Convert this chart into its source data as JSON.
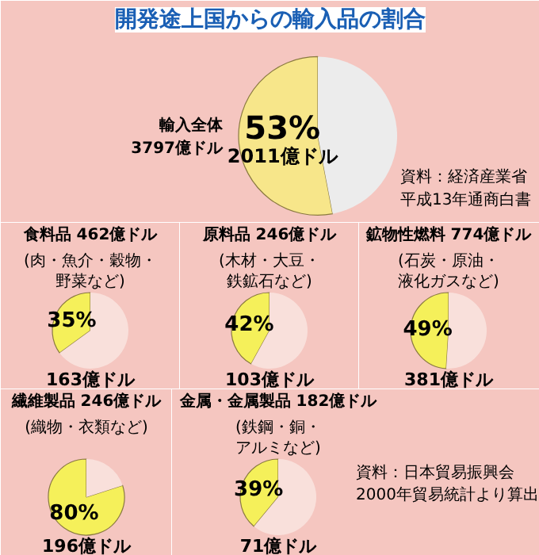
{
  "chart_data": [
    {
      "type": "pie",
      "title": "開発途上国からの輸入品の割合",
      "categories": [
        null,
        null
      ],
      "values": [
        53,
        47
      ],
      "colors": [
        "#f7e68a",
        "#ececec"
      ],
      "value_labels": [
        "53%",
        null
      ],
      "annotations": [
        "2011億ドル",
        "輸入全体",
        "3797億ドル",
        "資料：経済産業省",
        "平成13年通商白書"
      ]
    },
    {
      "type": "pie",
      "title": "食料品 462億ドル",
      "subtitle": "(肉・魚介・穀物・野菜など)",
      "categories": [
        null,
        null
      ],
      "values": [
        35,
        65
      ],
      "colors": [
        "#f5f05a",
        "#f9e0db"
      ],
      "value_labels": [
        "35%",
        null
      ],
      "annotations": [
        "163億ドル"
      ]
    },
    {
      "type": "pie",
      "title": "原料品 246億ドル",
      "subtitle": "(木材・大豆・鉄鉱石など)",
      "categories": [
        null,
        null
      ],
      "values": [
        42,
        58
      ],
      "colors": [
        "#f5f05a",
        "#f9e0db"
      ],
      "value_labels": [
        "42%",
        null
      ],
      "annotations": [
        "103億ドル"
      ]
    },
    {
      "type": "pie",
      "title": "鉱物性燃料 774億ドル",
      "subtitle": "(石炭・原油・液化ガスなど)",
      "categories": [
        null,
        null
      ],
      "values": [
        49,
        51
      ],
      "colors": [
        "#f5f05a",
        "#f9e0db"
      ],
      "value_labels": [
        "49%",
        null
      ],
      "annotations": [
        "381億ドル"
      ]
    },
    {
      "type": "pie",
      "title": "繊維製品 246億ドル",
      "subtitle": "(織物・衣類など)",
      "categories": [
        null,
        null
      ],
      "values": [
        80,
        20
      ],
      "colors": [
        "#f5f05a",
        "#f9e0db"
      ],
      "value_labels": [
        "80%",
        null
      ],
      "annotations": [
        "196億ドル"
      ]
    },
    {
      "type": "pie",
      "title": "金属・金属製品 182億ドル",
      "subtitle": "(鉄鋼・銅・アルミなど)",
      "categories": [
        null,
        null
      ],
      "values": [
        39,
        61
      ],
      "colors": [
        "#f5f05a",
        "#f9e0db"
      ],
      "value_labels": [
        "39%",
        null
      ],
      "annotations": [
        "71億ドル",
        "資料：日本貿易振興会",
        "2000年貿易統計より算出"
      ]
    }
  ]
}
